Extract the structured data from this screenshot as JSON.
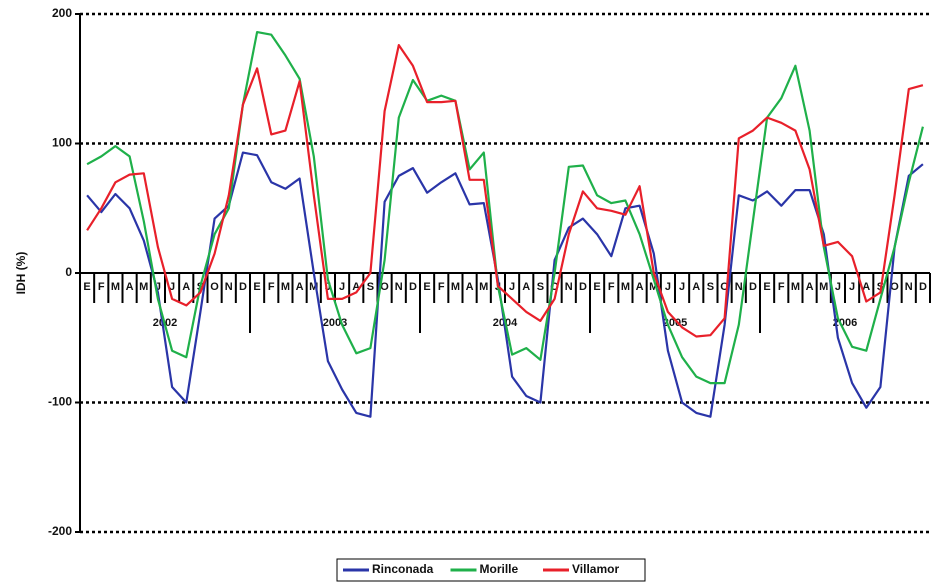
{
  "chart_data": {
    "type": "line",
    "y_label": "IDH (%)",
    "categories": [
      "E",
      "F",
      "M",
      "A",
      "M",
      "J",
      "J",
      "A",
      "S",
      "O",
      "N",
      "D",
      "E",
      "F",
      "M",
      "A",
      "M",
      "J",
      "J",
      "A",
      "S",
      "O",
      "N",
      "D",
      "E",
      "F",
      "M",
      "A",
      "M",
      "J",
      "J",
      "A",
      "S",
      "O",
      "N",
      "D",
      "E",
      "F",
      "M",
      "A",
      "M",
      "J",
      "J",
      "A",
      "S",
      "O",
      "N",
      "D",
      "E",
      "F",
      "M",
      "A",
      "M",
      "J",
      "J",
      "A",
      "S",
      "O",
      "N",
      "D"
    ],
    "groups": [
      "2002",
      "2003",
      "2004",
      "2005",
      "2006"
    ],
    "ylim": [
      -200,
      200
    ],
    "yticks": [
      -200,
      -100,
      0,
      100,
      200
    ],
    "grid": true,
    "series": [
      {
        "name": "Rinconada",
        "color": "#2a35a8",
        "values": [
          60,
          47,
          61,
          50,
          25,
          -15,
          -88,
          -100,
          -30,
          42,
          52,
          93,
          91,
          70,
          65,
          73,
          0,
          -68,
          -90,
          -108,
          -111,
          55,
          75,
          81,
          62,
          70,
          77,
          53,
          54,
          -5,
          -80,
          -95,
          -100,
          10,
          35,
          42,
          30,
          13,
          50,
          52,
          15,
          -60,
          -100,
          -108,
          -111,
          -40,
          60,
          56,
          63,
          52,
          64,
          64,
          30,
          -50,
          -85,
          -104,
          -88,
          20,
          75,
          84
        ]
      },
      {
        "name": "Morille",
        "color": "#1fb04a",
        "values": [
          84,
          90,
          98,
          90,
          40,
          -20,
          -60,
          -65,
          -10,
          30,
          50,
          130,
          186,
          184,
          168,
          150,
          90,
          -5,
          -40,
          -62,
          -58,
          10,
          120,
          149,
          133,
          137,
          133,
          80,
          93,
          -10,
          -63,
          -58,
          -67,
          0,
          82,
          83,
          60,
          54,
          56,
          30,
          -5,
          -40,
          -65,
          -80,
          -85,
          -85,
          -40,
          40,
          120,
          135,
          160,
          110,
          20,
          -35,
          -57,
          -60,
          -20,
          20,
          70,
          113
        ]
      },
      {
        "name": "Villamor",
        "color": "#e8202a",
        "values": [
          33,
          50,
          70,
          76,
          77,
          20,
          -20,
          -25,
          -15,
          15,
          60,
          130,
          158,
          107,
          110,
          148,
          60,
          -20,
          -20,
          -15,
          0,
          125,
          176,
          160,
          132,
          132,
          133,
          72,
          72,
          -10,
          -20,
          -30,
          -37,
          -20,
          30,
          63,
          50,
          48,
          45,
          67,
          0,
          -30,
          -42,
          -49,
          -48,
          -35,
          104,
          110,
          120,
          116,
          110,
          80,
          21,
          24,
          13,
          -22,
          -15,
          60,
          142,
          145
        ]
      }
    ]
  }
}
